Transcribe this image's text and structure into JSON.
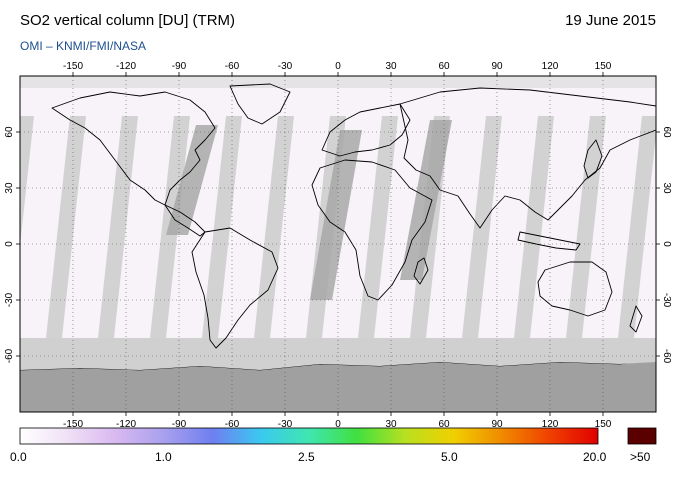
{
  "header": {
    "title": "SO2 vertical column [DU] (TRM)",
    "date": "19 June 2015",
    "credit": "OMI  –  KNMI/FMI/NASA"
  },
  "map": {
    "lon_ticks": [
      "-150",
      "-120",
      "-90",
      "-60",
      "-30",
      "0",
      "30",
      "60",
      "90",
      "120",
      "150"
    ],
    "lat_ticks": [
      "60",
      "30",
      "0",
      "-30",
      "-60"
    ],
    "lon_range": [
      -180,
      180
    ],
    "lat_range": [
      -90,
      90
    ],
    "colors": {
      "land_gap": "#d2d2d2",
      "overpass": "#a8a8a8",
      "antarctica": "#a0a0a0",
      "coast": "#000000"
    }
  },
  "colorbar": {
    "tick_labels": [
      "0.0",
      "1.0",
      "2.5",
      "5.0",
      "20.0",
      ">50"
    ],
    "overflow_color": "#5a0000",
    "gradient": [
      "#ffffff",
      "#f0e0f5",
      "#d8b8f0",
      "#a8a0ee",
      "#6f7ff0",
      "#3ac9f0",
      "#3fe6b0",
      "#40e040",
      "#b8e020",
      "#f0d000",
      "#f08a00",
      "#f04000",
      "#e00000"
    ]
  }
}
